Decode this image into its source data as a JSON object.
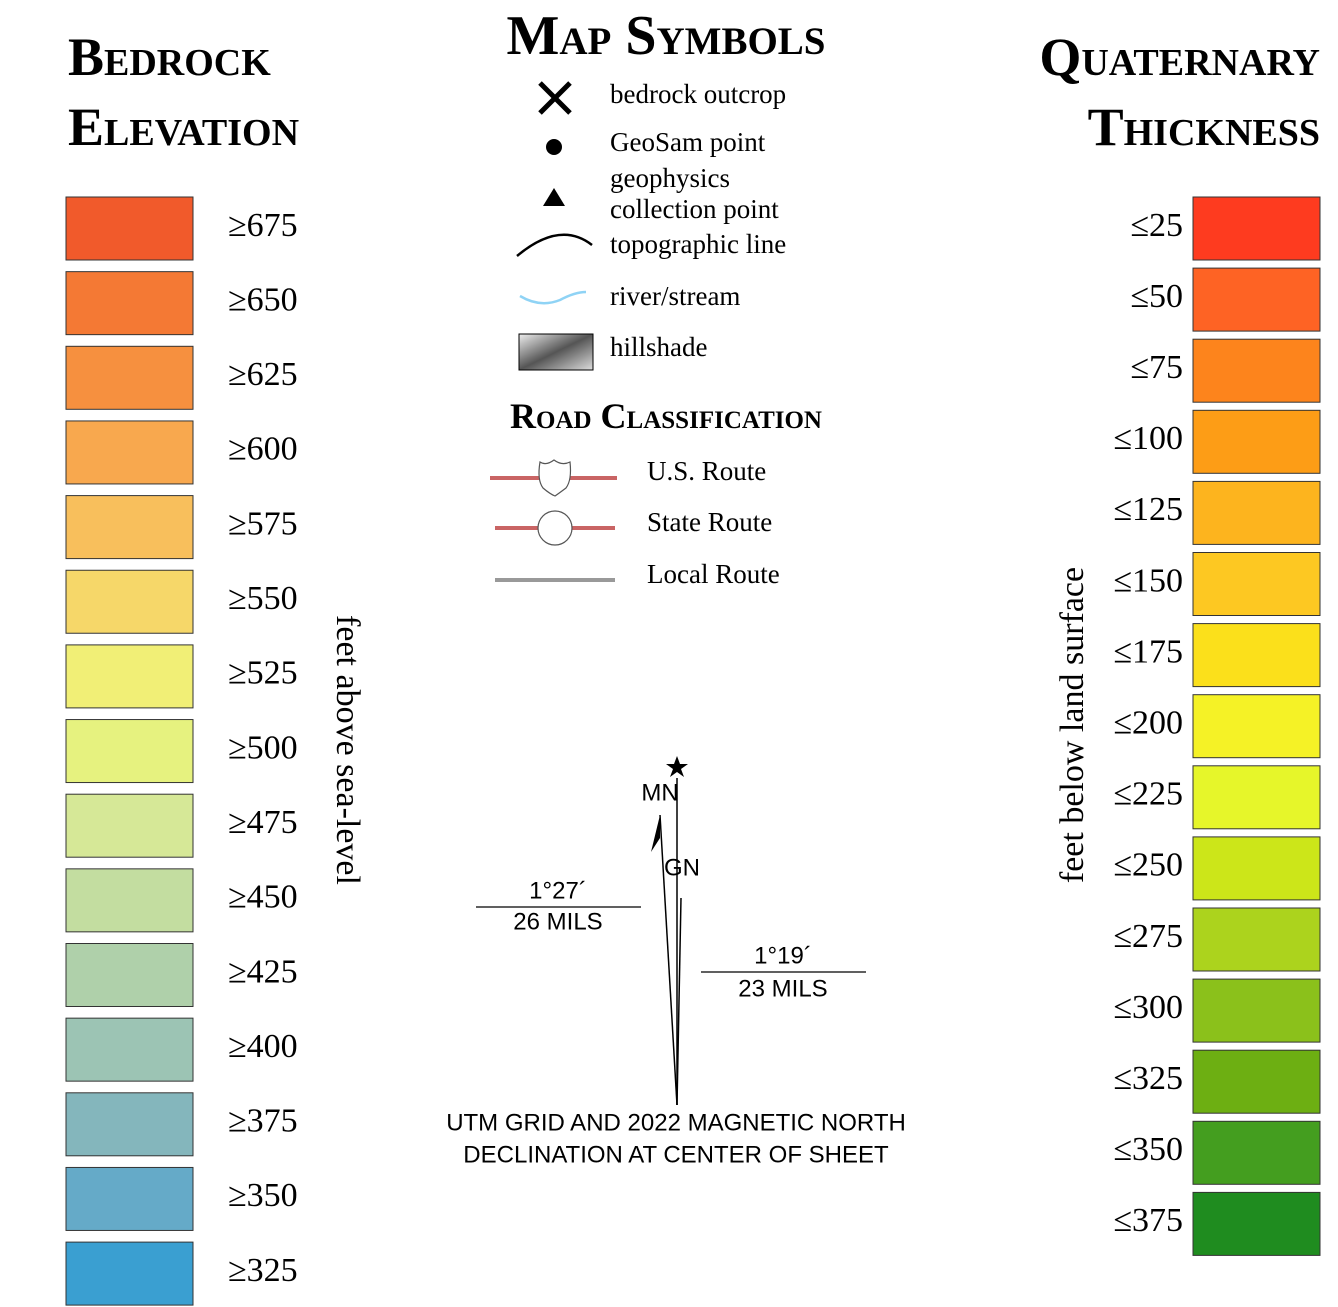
{
  "bedrock": {
    "title_lines": [
      "Bedrock",
      "Elevation"
    ],
    "unit": "feet above sea-level",
    "items": [
      {
        "label": "≥675",
        "color": "#f15a2b"
      },
      {
        "label": "≥650",
        "color": "#f47934"
      },
      {
        "label": "≥625",
        "color": "#f6903f"
      },
      {
        "label": "≥600",
        "color": "#f8a84e"
      },
      {
        "label": "≥575",
        "color": "#f8bf5c"
      },
      {
        "label": "≥550",
        "color": "#f6d769"
      },
      {
        "label": "≥525",
        "color": "#f1ef76"
      },
      {
        "label": "≥500",
        "color": "#e6f27f"
      },
      {
        "label": "≥475",
        "color": "#d6e897"
      },
      {
        "label": "≥450",
        "color": "#c3dda0"
      },
      {
        "label": "≥425",
        "color": "#afd0aa"
      },
      {
        "label": "≥400",
        "color": "#9cc4b4"
      },
      {
        "label": "≥375",
        "color": "#84b6bc"
      },
      {
        "label": "≥350",
        "color": "#65aac8"
      },
      {
        "label": "≥325",
        "color": "#3a9fd1"
      }
    ]
  },
  "symbols": {
    "title": "Map Symbols",
    "items": [
      [
        "bedrock outcrop"
      ],
      [
        "GeoSam point"
      ],
      [
        "geophysics",
        "collection point"
      ],
      [
        "topographic line"
      ],
      [
        "river/stream"
      ],
      [
        "hillshade"
      ]
    ]
  },
  "roads": {
    "title": "Road Classification",
    "items": [
      "U.S. Route",
      "State Route",
      "Local Route"
    ]
  },
  "declination": {
    "mn": "MN",
    "gn": "GN",
    "left_angle": "1°27´",
    "left_mils": "26 MILS",
    "right_angle": "1°19´",
    "right_mils": "23 MILS",
    "caption": [
      "UTM GRID AND 2022 MAGNETIC NORTH",
      "DECLINATION AT CENTER OF SHEET"
    ]
  },
  "quaternary": {
    "title_lines": [
      "Quaternary",
      "Thickness"
    ],
    "unit": "feet below land surface",
    "items": [
      {
        "label": "≤25",
        "color": "#fe3b1f"
      },
      {
        "label": "≤50",
        "color": "#fe6324"
      },
      {
        "label": "≤75",
        "color": "#fd841c"
      },
      {
        "label": "≤100",
        "color": "#fd9d16"
      },
      {
        "label": "≤125",
        "color": "#fdb41e"
      },
      {
        "label": "≤150",
        "color": "#fdc822"
      },
      {
        "label": "≤175",
        "color": "#fbe01b"
      },
      {
        "label": "≤200",
        "color": "#f5f226"
      },
      {
        "label": "≤225",
        "color": "#e6f62a"
      },
      {
        "label": "≤250",
        "color": "#cce619"
      },
      {
        "label": "≤275",
        "color": "#acd31d"
      },
      {
        "label": "≤300",
        "color": "#8bc11b"
      },
      {
        "label": "≤325",
        "color": "#6daf12"
      },
      {
        "label": "≤350",
        "color": "#449e1f"
      },
      {
        "label": "≤375",
        "color": "#1f8c1f"
      }
    ]
  }
}
